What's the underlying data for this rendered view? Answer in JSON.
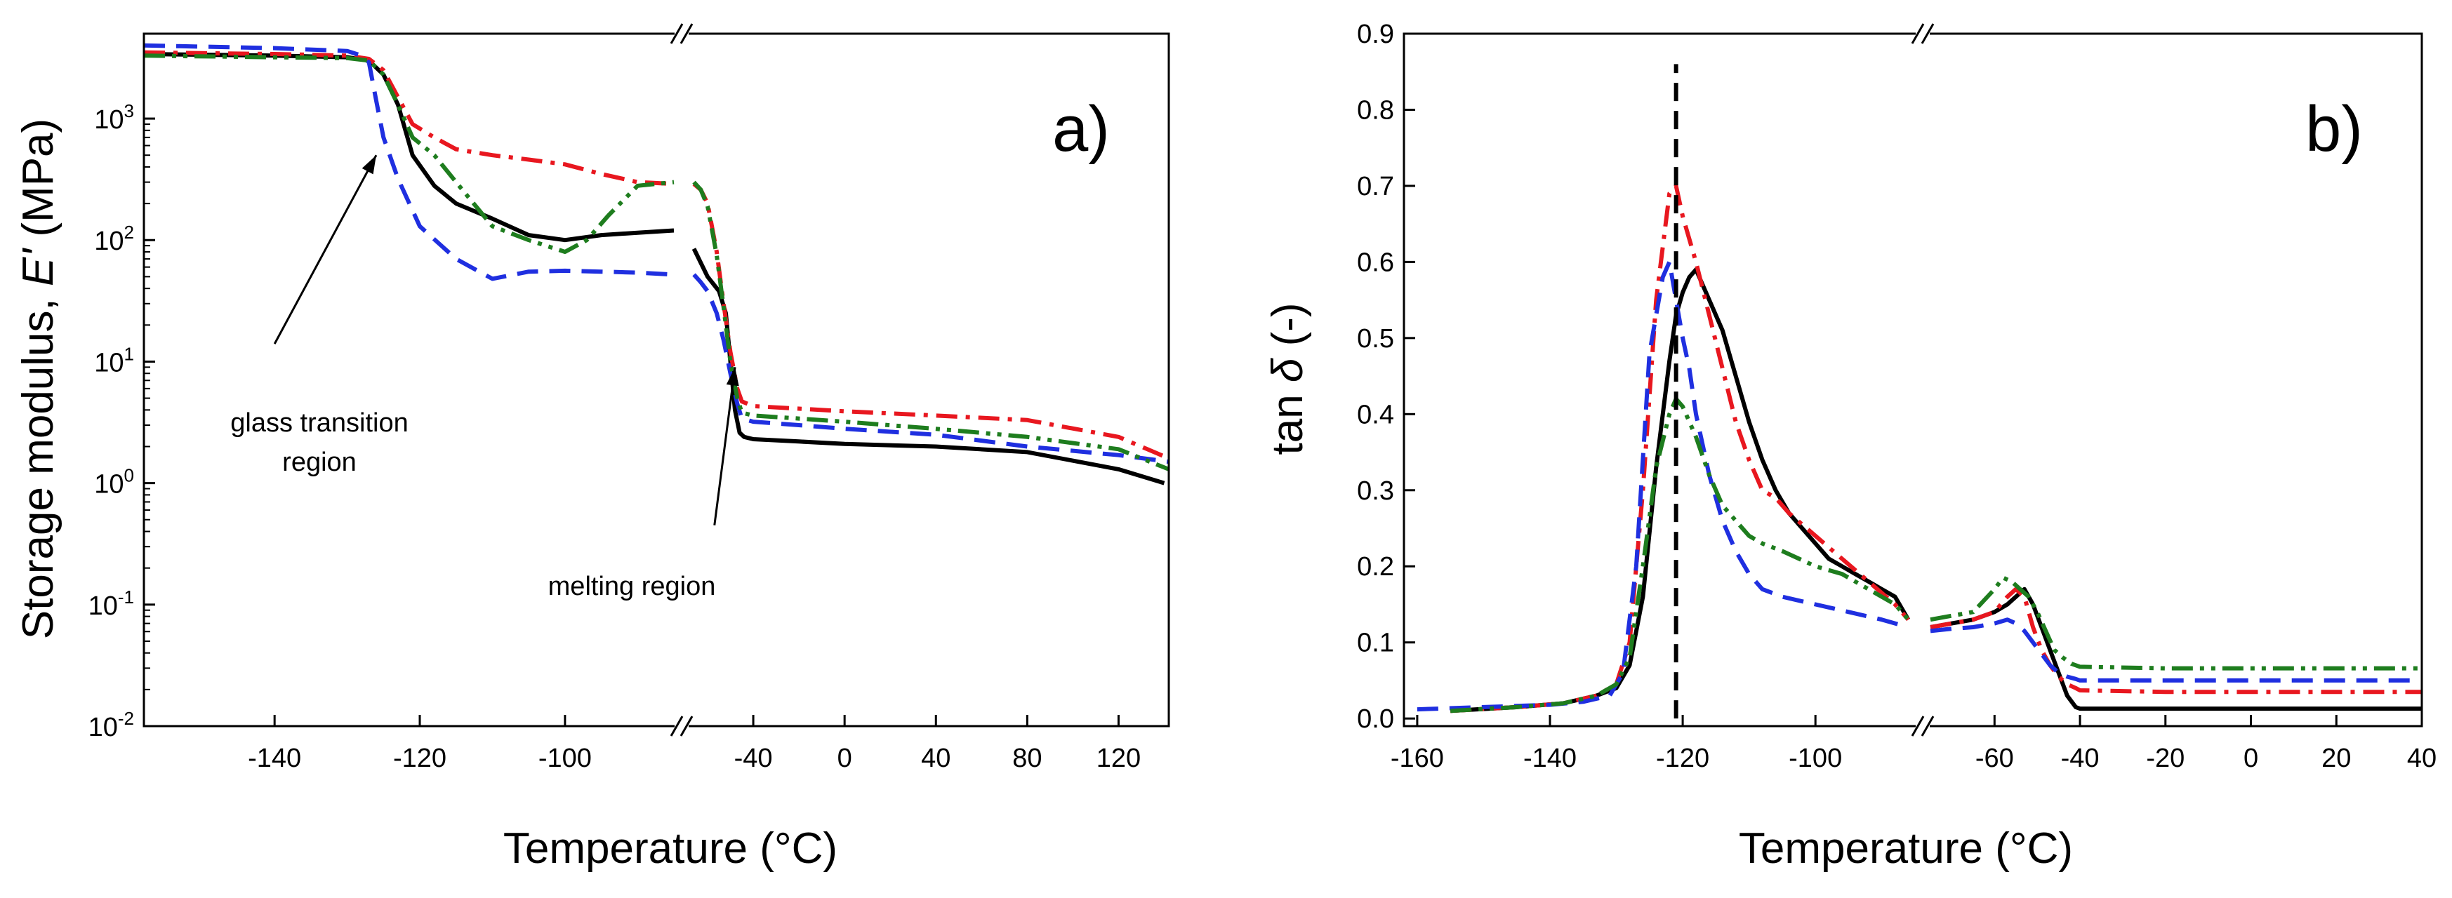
{
  "chart_data": [
    {
      "panel_label": "a)",
      "type": "line",
      "ylabel_main": "Storage modulus, ",
      "ylabel_symbol": "E'",
      "ylabel_unit": " (MPa)",
      "xlabel": "Temperature (°C)",
      "y_scale": "log",
      "ylim": [
        0.01,
        5000
      ],
      "x_axis_break": {
        "left_segment": [
          -158,
          -85
        ],
        "right_segment": [
          -68,
          142
        ]
      },
      "y_ticks": [
        {
          "base": "10",
          "exp": "3",
          "value": 1000
        },
        {
          "base": "10",
          "exp": "2",
          "value": 100
        },
        {
          "base": "10",
          "exp": "1",
          "value": 10
        },
        {
          "base": "10",
          "exp": "0",
          "value": 1
        },
        {
          "base": "10",
          "exp": "-1",
          "value": 0.1
        },
        {
          "base": "10",
          "exp": "-2",
          "value": 0.01
        }
      ],
      "x_ticks": [
        "-140",
        "-120",
        "-100",
        "-40",
        "0",
        "40",
        "80",
        "120"
      ],
      "x_tick_values": [
        -140,
        -120,
        -100,
        -40,
        0,
        40,
        80,
        120
      ],
      "annotations": [
        {
          "lines": [
            "glass transition",
            "region"
          ],
          "arrow_from": [
            -140,
            14
          ],
          "arrow_to": [
            -126,
            500
          ]
        },
        {
          "lines": [
            "melting region"
          ],
          "arrow_from": [
            -57,
            0.45
          ],
          "arrow_to": [
            -48,
            9
          ]
        }
      ],
      "series": [
        {
          "name": "black-solid",
          "color": "#000000",
          "dash": "solid",
          "x": [
            -158,
            -140,
            -130,
            -127,
            -125,
            -123,
            -121,
            -118,
            -115,
            -110,
            -105,
            -100,
            -95,
            -90,
            -85,
            null,
            -66,
            -60,
            -55,
            -52,
            -50,
            -48,
            -46,
            -44,
            -40,
            -20,
            0,
            40,
            80,
            120,
            140
          ],
          "y": [
            3400,
            3300,
            3200,
            3000,
            2300,
            1300,
            500,
            280,
            200,
            150,
            110,
            100,
            110,
            115,
            120,
            null,
            85,
            50,
            38,
            25,
            10,
            4,
            2.6,
            2.4,
            2.3,
            2.2,
            2.1,
            2.0,
            1.8,
            1.3,
            1.0
          ]
        },
        {
          "name": "red-dashdot",
          "color": "#e8171f",
          "dash": "dashdot",
          "x": [
            -158,
            -140,
            -130,
            -127,
            -125,
            -123,
            -121,
            -118,
            -115,
            -110,
            -105,
            -100,
            -95,
            -90,
            -85,
            null,
            -66,
            -63,
            -60,
            -56,
            -53,
            -50,
            -47,
            -45,
            -40,
            -20,
            0,
            40,
            80,
            120,
            142
          ],
          "y": [
            3500,
            3400,
            3300,
            3100,
            2500,
            1500,
            900,
            700,
            560,
            500,
            460,
            420,
            350,
            300,
            290,
            null,
            290,
            260,
            200,
            80,
            30,
            12,
            6,
            4.7,
            4.3,
            4.1,
            3.9,
            3.6,
            3.3,
            2.4,
            1.6
          ]
        },
        {
          "name": "blue-dashed",
          "color": "#1f2fe0",
          "dash": "dashed",
          "x": [
            -158,
            -140,
            -130,
            -128,
            -127,
            -126,
            -125,
            -123,
            -120,
            -115,
            -110,
            -105,
            -100,
            -95,
            -90,
            -85,
            null,
            -66,
            -63,
            -60,
            -56,
            -53,
            -50,
            -47,
            -45,
            -40,
            -20,
            0,
            40,
            80,
            120,
            142
          ],
          "y": [
            4000,
            3800,
            3600,
            3300,
            2900,
            1400,
            700,
            320,
            130,
            70,
            48,
            55,
            56,
            55,
            54,
            52,
            null,
            52,
            45,
            38,
            25,
            15,
            8,
            4.5,
            3.4,
            3.2,
            3.0,
            2.8,
            2.5,
            2.0,
            1.7,
            1.5
          ]
        },
        {
          "name": "green-dashdotdot",
          "color": "#1e7d1e",
          "dash": "dashdotdot",
          "x": [
            -158,
            -140,
            -130,
            -127,
            -125,
            -123,
            -121,
            -118,
            -115,
            -110,
            -105,
            -100,
            -97,
            -94,
            -90,
            -85,
            null,
            -66,
            -63,
            -60,
            -56,
            -53,
            -50,
            -47,
            -45,
            -40,
            -20,
            0,
            40,
            80,
            120,
            142
          ],
          "y": [
            3300,
            3200,
            3150,
            3000,
            2300,
            1300,
            700,
            500,
            300,
            130,
            100,
            80,
            100,
            160,
            280,
            300,
            null,
            300,
            260,
            190,
            75,
            28,
            10,
            5,
            3.8,
            3.6,
            3.4,
            3.2,
            2.8,
            2.4,
            1.9,
            1.3
          ]
        }
      ]
    },
    {
      "panel_label": "b)",
      "type": "line",
      "ylabel_main": "tan ",
      "ylabel_symbol": "δ",
      "ylabel_unit": " (-)",
      "xlabel": "Temperature (°C)",
      "ylim": [
        -0.01,
        0.9
      ],
      "x_axis_break": {
        "left_segment": [
          -162,
          -85
        ],
        "right_segment": [
          -75,
          40
        ]
      },
      "y_ticks": [
        "0.0",
        "0.1",
        "0.2",
        "0.3",
        "0.4",
        "0.5",
        "0.6",
        "0.7",
        "0.8",
        "0.9"
      ],
      "y_tick_values": [
        0,
        0.1,
        0.2,
        0.3,
        0.4,
        0.5,
        0.6,
        0.7,
        0.8,
        0.9
      ],
      "x_ticks": [
        "-160",
        "-140",
        "-120",
        "-100",
        "-60",
        "-40",
        "-20",
        "0",
        "20",
        "40"
      ],
      "x_tick_values": [
        -160,
        -140,
        -120,
        -100,
        -60,
        -40,
        -20,
        0,
        20,
        40
      ],
      "vertical_reference_line": {
        "x": -121,
        "y_range": [
          0,
          0.86
        ]
      },
      "series": [
        {
          "name": "black-solid",
          "color": "#000000",
          "dash": "solid",
          "x": [
            -155,
            -145,
            -138,
            -133,
            -130,
            -128,
            -126,
            -124,
            -122,
            -121,
            -120,
            -119,
            -118,
            -116,
            -114,
            -112,
            -110,
            -108,
            -106,
            -104,
            -102,
            -100,
            -98,
            -96,
            -94,
            -92,
            -90,
            -88,
            -86,
            null,
            -75,
            -70,
            -65,
            -60,
            -57,
            -55,
            -53,
            -51,
            -49,
            -47,
            -45,
            -43,
            -41,
            -40,
            -20,
            0,
            20,
            40
          ],
          "y": [
            0.01,
            0.015,
            0.02,
            0.03,
            0.04,
            0.07,
            0.16,
            0.33,
            0.47,
            0.53,
            0.56,
            0.58,
            0.59,
            0.55,
            0.51,
            0.45,
            0.39,
            0.34,
            0.3,
            0.27,
            0.25,
            0.23,
            0.21,
            0.2,
            0.19,
            0.18,
            0.17,
            0.16,
            0.13,
            null,
            0.12,
            0.125,
            0.13,
            0.14,
            0.15,
            0.16,
            0.17,
            0.15,
            0.12,
            0.09,
            0.06,
            0.03,
            0.015,
            0.013,
            0.013,
            0.013,
            0.013,
            0.013
          ]
        },
        {
          "name": "red-dashdot",
          "color": "#e8171f",
          "dash": "dashdot",
          "x": [
            -155,
            -145,
            -138,
            -133,
            -130,
            -128,
            -126,
            -124,
            -122,
            -121,
            -120,
            -118,
            -116,
            -114,
            -112,
            -110,
            -108,
            -106,
            -104,
            -100,
            -96,
            -92,
            -88,
            -86,
            null,
            -75,
            -70,
            -65,
            -60,
            -57,
            -55,
            -53,
            -51,
            -49,
            -47,
            -45,
            -43,
            -41,
            -40,
            -20,
            0,
            20,
            40
          ],
          "y": [
            0.01,
            0.015,
            0.02,
            0.03,
            0.045,
            0.1,
            0.3,
            0.55,
            0.69,
            0.7,
            0.66,
            0.6,
            0.53,
            0.46,
            0.39,
            0.34,
            0.3,
            0.29,
            0.27,
            0.24,
            0.21,
            0.18,
            0.15,
            0.13,
            null,
            0.12,
            0.125,
            0.13,
            0.14,
            0.16,
            0.17,
            0.16,
            0.12,
            0.09,
            0.07,
            0.055,
            0.045,
            0.04,
            0.037,
            0.035,
            0.035,
            0.035,
            0.035
          ]
        },
        {
          "name": "blue-dashed",
          "color": "#1f2fe0",
          "dash": "dashed",
          "x": [
            -160,
            -150,
            -140,
            -135,
            -131,
            -129,
            -127,
            -125,
            -123,
            -122,
            -121,
            -120,
            -119,
            -118,
            -116,
            -114,
            -112,
            -110,
            -108,
            -105,
            -100,
            -95,
            -90,
            -86,
            null,
            -75,
            -70,
            -65,
            -60,
            -57,
            -55,
            -53,
            -51,
            -49,
            -47,
            -45,
            -43,
            -41,
            -40,
            -20,
            0,
            20,
            40
          ],
          "y": [
            0.012,
            0.015,
            0.018,
            0.022,
            0.03,
            0.06,
            0.2,
            0.48,
            0.58,
            0.6,
            0.55,
            0.5,
            0.46,
            0.4,
            0.32,
            0.26,
            0.22,
            0.19,
            0.17,
            0.16,
            0.15,
            0.14,
            0.13,
            0.12,
            null,
            0.115,
            0.118,
            0.12,
            0.125,
            0.13,
            0.125,
            0.115,
            0.1,
            0.085,
            0.07,
            0.06,
            0.055,
            0.052,
            0.05,
            0.05,
            0.05,
            0.05,
            0.05
          ]
        },
        {
          "name": "green-dashdotdot",
          "color": "#1e7d1e",
          "dash": "dashdotdot",
          "x": [
            -155,
            -145,
            -138,
            -133,
            -130,
            -128,
            -126,
            -124,
            -122,
            -121,
            -120,
            -118,
            -116,
            -114,
            -112,
            -110,
            -108,
            -105,
            -100,
            -96,
            -92,
            -88,
            -86,
            null,
            -75,
            -70,
            -65,
            -60,
            -58,
            -56,
            -54,
            -52,
            -50,
            -48,
            -46,
            -44,
            -42,
            -40,
            -20,
            0,
            20,
            40
          ],
          "y": [
            0.01,
            0.015,
            0.02,
            0.03,
            0.045,
            0.08,
            0.2,
            0.33,
            0.4,
            0.42,
            0.41,
            0.37,
            0.32,
            0.28,
            0.26,
            0.24,
            0.23,
            0.22,
            0.2,
            0.19,
            0.17,
            0.15,
            0.13,
            null,
            0.13,
            0.135,
            0.14,
            0.17,
            0.185,
            0.18,
            0.17,
            0.16,
            0.14,
            0.115,
            0.09,
            0.08,
            0.072,
            0.068,
            0.066,
            0.066,
            0.066,
            0.066
          ]
        }
      ]
    }
  ]
}
